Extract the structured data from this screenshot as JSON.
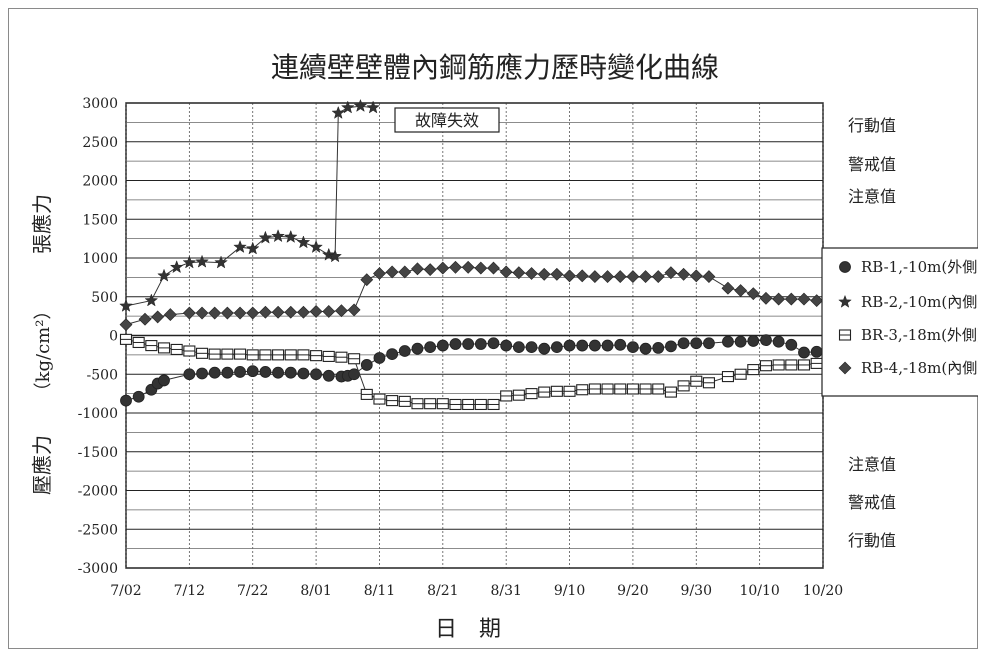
{
  "chart_data": {
    "type": "scatter",
    "title": "連續壁壁體內鋼筋應力歷時變化曲線",
    "xlabel": "日　期",
    "ylabel_tension": "張應力",
    "ylabel_unit": "（kg/cm²）",
    "ylabel_compression": "壓應力",
    "x_ticks": [
      "7/02",
      "7/12",
      "7/22",
      "8/01",
      "8/11",
      "8/21",
      "8/31",
      "9/10",
      "9/20",
      "9/30",
      "10/10",
      "10/20"
    ],
    "y_ticks": [
      3000,
      2500,
      2000,
      1500,
      1000,
      500,
      0,
      -500,
      -1000,
      -1500,
      -2000,
      -2500,
      -3000
    ],
    "ylim": [
      -3000,
      3000
    ],
    "grid": true,
    "threshold_labels": {
      "upper": [
        "行動值",
        "警戒值",
        "注意值"
      ],
      "lower": [
        "注意值",
        "警戒值",
        "行動值"
      ]
    },
    "annotation": "故障失效",
    "legend_position": "right",
    "series": [
      {
        "name": "RB-1,-10m(外側)",
        "marker": "circle",
        "points": [
          [
            0,
            -840
          ],
          [
            2,
            -790
          ],
          [
            4,
            -700
          ],
          [
            5,
            -620
          ],
          [
            6,
            -580
          ],
          [
            10,
            -500
          ],
          [
            12,
            -490
          ],
          [
            14,
            -480
          ],
          [
            16,
            -480
          ],
          [
            18,
            -470
          ],
          [
            20,
            -460
          ],
          [
            22,
            -470
          ],
          [
            24,
            -480
          ],
          [
            26,
            -480
          ],
          [
            28,
            -490
          ],
          [
            30,
            -500
          ],
          [
            32,
            -520
          ],
          [
            34,
            -530
          ],
          [
            35,
            -520
          ],
          [
            36,
            -500
          ],
          [
            38,
            -380
          ],
          [
            40,
            -290
          ],
          [
            42,
            -240
          ],
          [
            44,
            -200
          ],
          [
            46,
            -170
          ],
          [
            48,
            -150
          ],
          [
            50,
            -130
          ],
          [
            52,
            -110
          ],
          [
            54,
            -110
          ],
          [
            56,
            -110
          ],
          [
            58,
            -100
          ],
          [
            60,
            -130
          ],
          [
            62,
            -150
          ],
          [
            64,
            -150
          ],
          [
            66,
            -170
          ],
          [
            68,
            -150
          ],
          [
            70,
            -130
          ],
          [
            72,
            -130
          ],
          [
            74,
            -130
          ],
          [
            76,
            -130
          ],
          [
            78,
            -120
          ],
          [
            80,
            -150
          ],
          [
            82,
            -170
          ],
          [
            84,
            -160
          ],
          [
            86,
            -140
          ],
          [
            88,
            -100
          ],
          [
            90,
            -100
          ],
          [
            92,
            -100
          ],
          [
            95,
            -80
          ],
          [
            97,
            -80
          ],
          [
            99,
            -70
          ],
          [
            101,
            -60
          ],
          [
            103,
            -80
          ],
          [
            105,
            -120
          ],
          [
            107,
            -220
          ],
          [
            109,
            -210
          ]
        ]
      },
      {
        "name": "RB-2,-10m(內側)",
        "marker": "star",
        "points": [
          [
            0,
            380
          ],
          [
            4,
            450
          ],
          [
            6,
            770
          ],
          [
            8,
            880
          ],
          [
            10,
            940
          ],
          [
            12,
            950
          ],
          [
            15,
            940
          ],
          [
            18,
            1140
          ],
          [
            20,
            1120
          ],
          [
            22,
            1260
          ],
          [
            24,
            1280
          ],
          [
            26,
            1270
          ],
          [
            28,
            1200
          ],
          [
            30,
            1140
          ],
          [
            32,
            1040
          ],
          [
            33,
            1020
          ],
          [
            33.5,
            2870
          ],
          [
            35,
            2940
          ],
          [
            37,
            2960
          ],
          [
            39,
            2940
          ]
        ]
      },
      {
        "name": "BR-3,-18m(外側)",
        "marker": "square-line",
        "points": [
          [
            0,
            -50
          ],
          [
            2,
            -90
          ],
          [
            4,
            -130
          ],
          [
            6,
            -160
          ],
          [
            8,
            -180
          ],
          [
            10,
            -200
          ],
          [
            12,
            -230
          ],
          [
            14,
            -240
          ],
          [
            16,
            -240
          ],
          [
            18,
            -240
          ],
          [
            20,
            -250
          ],
          [
            22,
            -250
          ],
          [
            24,
            -250
          ],
          [
            26,
            -250
          ],
          [
            28,
            -250
          ],
          [
            30,
            -260
          ],
          [
            32,
            -270
          ],
          [
            34,
            -280
          ],
          [
            36,
            -300
          ],
          [
            38,
            -760
          ],
          [
            40,
            -820
          ],
          [
            42,
            -840
          ],
          [
            44,
            -850
          ],
          [
            46,
            -880
          ],
          [
            48,
            -880
          ],
          [
            50,
            -880
          ],
          [
            52,
            -890
          ],
          [
            54,
            -890
          ],
          [
            56,
            -890
          ],
          [
            58,
            -890
          ],
          [
            60,
            -780
          ],
          [
            62,
            -770
          ],
          [
            64,
            -750
          ],
          [
            66,
            -730
          ],
          [
            68,
            -720
          ],
          [
            70,
            -720
          ],
          [
            72,
            -700
          ],
          [
            74,
            -690
          ],
          [
            76,
            -690
          ],
          [
            78,
            -690
          ],
          [
            80,
            -690
          ],
          [
            82,
            -690
          ],
          [
            84,
            -690
          ],
          [
            86,
            -730
          ],
          [
            88,
            -650
          ],
          [
            90,
            -590
          ],
          [
            92,
            -610
          ],
          [
            95,
            -530
          ],
          [
            97,
            -500
          ],
          [
            99,
            -440
          ],
          [
            101,
            -390
          ],
          [
            103,
            -380
          ],
          [
            105,
            -380
          ],
          [
            107,
            -380
          ],
          [
            109,
            -360
          ]
        ]
      },
      {
        "name": "RB-4,-18m(內側)",
        "marker": "diamond",
        "points": [
          [
            0,
            140
          ],
          [
            3,
            210
          ],
          [
            5,
            240
          ],
          [
            7,
            270
          ],
          [
            10,
            290
          ],
          [
            12,
            290
          ],
          [
            14,
            290
          ],
          [
            16,
            290
          ],
          [
            18,
            290
          ],
          [
            20,
            290
          ],
          [
            22,
            300
          ],
          [
            24,
            300
          ],
          [
            26,
            300
          ],
          [
            28,
            300
          ],
          [
            30,
            310
          ],
          [
            32,
            310
          ],
          [
            34,
            320
          ],
          [
            36,
            330
          ],
          [
            38,
            720
          ],
          [
            40,
            800
          ],
          [
            42,
            820
          ],
          [
            44,
            820
          ],
          [
            46,
            860
          ],
          [
            48,
            850
          ],
          [
            50,
            870
          ],
          [
            52,
            880
          ],
          [
            54,
            880
          ],
          [
            56,
            870
          ],
          [
            58,
            870
          ],
          [
            60,
            820
          ],
          [
            62,
            810
          ],
          [
            64,
            800
          ],
          [
            66,
            790
          ],
          [
            68,
            790
          ],
          [
            70,
            770
          ],
          [
            72,
            770
          ],
          [
            74,
            760
          ],
          [
            76,
            760
          ],
          [
            78,
            760
          ],
          [
            80,
            760
          ],
          [
            82,
            760
          ],
          [
            84,
            760
          ],
          [
            86,
            810
          ],
          [
            88,
            790
          ],
          [
            90,
            770
          ],
          [
            92,
            760
          ],
          [
            95,
            610
          ],
          [
            97,
            580
          ],
          [
            99,
            540
          ],
          [
            101,
            480
          ],
          [
            103,
            470
          ],
          [
            105,
            470
          ],
          [
            107,
            470
          ],
          [
            109,
            450
          ]
        ]
      }
    ]
  }
}
